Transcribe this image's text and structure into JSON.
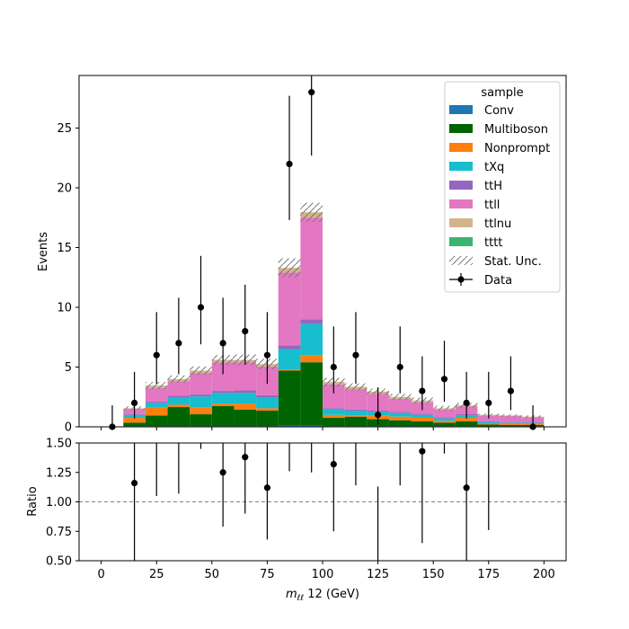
{
  "chart_data": {
    "type": "bar",
    "stacked": true,
    "x_bin_edges": [
      10,
      20,
      30,
      40,
      50,
      60,
      70,
      80,
      90,
      100,
      110,
      120,
      130,
      140,
      150,
      160,
      170,
      180,
      190,
      200
    ],
    "xlim": [
      -10,
      210
    ],
    "x_ticks": [
      0,
      50,
      100,
      150,
      200
    ],
    "x_tick_labels": [
      "0",
      "25",
      "50",
      "75",
      "100",
      "125",
      "150",
      "175",
      "200"
    ],
    "x_tick_values": [
      0,
      25,
      50,
      75,
      100,
      125,
      150,
      175,
      200
    ],
    "xlabel": {
      "prefix": "m",
      "subscript": "ℓℓ",
      "suffix": " 12 (GeV)"
    },
    "main": {
      "ylabel": "Events",
      "ylim": [
        0,
        29.4
      ],
      "y_tick_values": [
        0,
        5,
        10,
        15,
        20,
        25
      ],
      "y_tick_labels": [
        "0",
        "5",
        "10",
        "15",
        "20",
        "25"
      ]
    },
    "ratio": {
      "ylabel": "Ratio",
      "ylim": [
        0.5,
        1.5
      ],
      "y_tick_values": [
        0.5,
        0.75,
        1.0,
        1.25,
        1.5
      ],
      "y_tick_labels": [
        "0.50",
        "0.75",
        "1.00",
        "1.25",
        "1.50"
      ],
      "reference_line": 1.0
    },
    "series": [
      {
        "name": "Conv",
        "color": "#1f77b4",
        "values": [
          0.05,
          0.05,
          0.05,
          0.05,
          0.05,
          0.05,
          0.05,
          0.1,
          0.1,
          0.05,
          0.05,
          0.05,
          0.05,
          0.05,
          0.05,
          0.05,
          0.05,
          0.05,
          0.05
        ]
      },
      {
        "name": "Multiboson",
        "color": "#006400",
        "values": [
          0.3,
          0.9,
          1.6,
          1.0,
          1.7,
          1.4,
          1.3,
          4.6,
          5.3,
          0.7,
          0.8,
          0.6,
          0.5,
          0.4,
          0.3,
          0.4,
          0.15,
          0.1,
          0.1
        ]
      },
      {
        "name": "Nonprompt",
        "color": "#ff7f0e",
        "values": [
          0.4,
          0.7,
          0.2,
          0.6,
          0.2,
          0.5,
          0.2,
          0.1,
          0.6,
          0.25,
          0.1,
          0.3,
          0.3,
          0.3,
          0.15,
          0.3,
          0.1,
          0.1,
          0.1
        ]
      },
      {
        "name": "tXq",
        "color": "#17becf",
        "values": [
          0.25,
          0.35,
          0.6,
          0.9,
          0.9,
          0.9,
          0.9,
          1.7,
          2.6,
          0.45,
          0.4,
          0.3,
          0.3,
          0.25,
          0.2,
          0.2,
          0.1,
          0.1,
          0.1
        ]
      },
      {
        "name": "ttH",
        "color": "#9467bd",
        "values": [
          0.05,
          0.1,
          0.15,
          0.15,
          0.15,
          0.2,
          0.2,
          0.3,
          0.4,
          0.1,
          0.1,
          0.1,
          0.1,
          0.1,
          0.1,
          0.1,
          0.05,
          0.05,
          0.05
        ]
      },
      {
        "name": "ttll",
        "color": "#e377c2",
        "values": [
          0.45,
          1.15,
          1.2,
          1.8,
          2.4,
          2.35,
          2.4,
          6.1,
          8.5,
          2.0,
          1.7,
          1.4,
          1.1,
          0.95,
          0.65,
          0.65,
          0.5,
          0.5,
          0.4
        ]
      },
      {
        "name": "ttlnu",
        "color": "#d2b48c",
        "values": [
          0.05,
          0.2,
          0.2,
          0.2,
          0.2,
          0.2,
          0.2,
          0.4,
          0.45,
          0.2,
          0.2,
          0.2,
          0.15,
          0.15,
          0.1,
          0.1,
          0.05,
          0.05,
          0.05
        ]
      },
      {
        "name": "tttt",
        "color": "#3cb371",
        "values": [
          0,
          0,
          0,
          0,
          0,
          0,
          0,
          0,
          0,
          0,
          0,
          0,
          0,
          0,
          0,
          0,
          0,
          0,
          0
        ]
      }
    ],
    "stat_unc": {
      "name": "Stat. Unc.",
      "values": [
        0.15,
        0.3,
        0.3,
        0.35,
        0.4,
        0.45,
        0.45,
        0.8,
        0.8,
        0.35,
        0.3,
        0.25,
        0.25,
        0.25,
        0.2,
        0.2,
        0.1,
        0.1,
        0.1
      ]
    },
    "data": {
      "name": "Data",
      "x": [
        5,
        15,
        25,
        35,
        45,
        55,
        65,
        75,
        85,
        95,
        105,
        115,
        125,
        135,
        145,
        155,
        165,
        175,
        185,
        195
      ],
      "y": [
        0,
        2,
        6,
        7,
        10,
        7,
        8,
        6,
        22,
        28,
        5,
        6,
        1,
        5,
        3,
        4,
        2,
        2,
        3,
        0
      ],
      "err_up": [
        1.8,
        2.6,
        3.6,
        3.8,
        4.3,
        3.8,
        3.9,
        3.6,
        5.7,
        6.2,
        3.4,
        3.6,
        2.3,
        3.4,
        2.9,
        3.2,
        2.6,
        2.6,
        2.9,
        1.8
      ],
      "err_down": [
        0,
        1.3,
        2.4,
        2.6,
        3.1,
        2.6,
        2.8,
        2.4,
        4.7,
        5.3,
        2.2,
        2.4,
        0.8,
        2.2,
        1.6,
        1.9,
        1.3,
        1.3,
        1.6,
        0
      ]
    },
    "ratio_points": {
      "x": [
        15,
        55,
        65,
        75,
        105,
        145,
        165
      ],
      "y": [
        1.16,
        1.25,
        1.38,
        1.12,
        1.32,
        1.43,
        1.12
      ],
      "lines": [
        {
          "x": 15,
          "lo": 0.5,
          "hi": 1.5
        },
        {
          "x": 25,
          "lo": 1.05,
          "hi": 1.5
        },
        {
          "x": 35,
          "lo": 1.07,
          "hi": 1.5
        },
        {
          "x": 45,
          "lo": 1.45,
          "hi": 1.5
        },
        {
          "x": 55,
          "lo": 0.79,
          "hi": 1.5
        },
        {
          "x": 65,
          "lo": 0.9,
          "hi": 1.5
        },
        {
          "x": 75,
          "lo": 0.68,
          "hi": 1.5
        },
        {
          "x": 85,
          "lo": 1.26,
          "hi": 1.5
        },
        {
          "x": 95,
          "lo": 1.25,
          "hi": 1.5
        },
        {
          "x": 105,
          "lo": 0.75,
          "hi": 1.5
        },
        {
          "x": 115,
          "lo": 1.14,
          "hi": 1.5
        },
        {
          "x": 125,
          "lo": 0.5,
          "hi": 1.13
        },
        {
          "x": 135,
          "lo": 1.14,
          "hi": 1.5
        },
        {
          "x": 145,
          "lo": 0.65,
          "hi": 1.5
        },
        {
          "x": 155,
          "lo": 1.41,
          "hi": 1.5
        },
        {
          "x": 165,
          "lo": 0.5,
          "hi": 1.5
        },
        {
          "x": 175,
          "lo": 0.76,
          "hi": 1.5
        }
      ]
    },
    "legend": {
      "title": "sample",
      "placement": "upper-right"
    }
  }
}
